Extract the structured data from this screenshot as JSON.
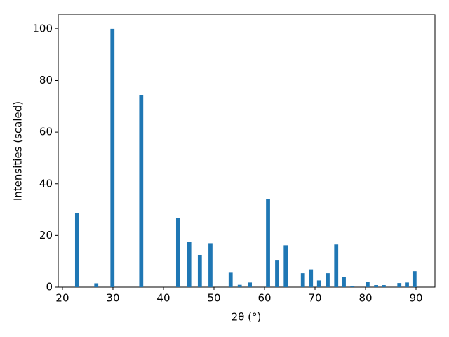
{
  "chart_data": {
    "type": "bar",
    "xlabel": "2θ (°)",
    "ylabel": "Intensities (scaled)",
    "x": [
      22.9,
      26.7,
      29.9,
      35.6,
      42.9,
      45.1,
      47.2,
      49.3,
      53.3,
      55.1,
      57.1,
      60.7,
      62.5,
      64.2,
      67.6,
      69.2,
      70.8,
      72.5,
      74.2,
      75.7,
      77.4,
      80.4,
      82.1,
      83.6,
      86.7,
      88.2,
      89.7
    ],
    "values": [
      28.7,
      1.5,
      100,
      74.2,
      26.8,
      17.6,
      12.5,
      17.0,
      5.6,
      0.9,
      1.8,
      34.1,
      10.3,
      16.2,
      5.4,
      6.9,
      2.6,
      5.4,
      16.5,
      4.0,
      0.3,
      1.9,
      0.8,
      0.8,
      1.6,
      1.8,
      6.2
    ],
    "color": "#1f77b4",
    "xlim": [
      19.17,
      93.75
    ],
    "xticks": [
      20,
      30,
      40,
      50,
      60,
      70,
      80,
      90
    ],
    "ylim": [
      0,
      105.4
    ],
    "yticks": [
      0,
      20,
      40,
      60,
      80,
      100
    ],
    "grid": false
  }
}
